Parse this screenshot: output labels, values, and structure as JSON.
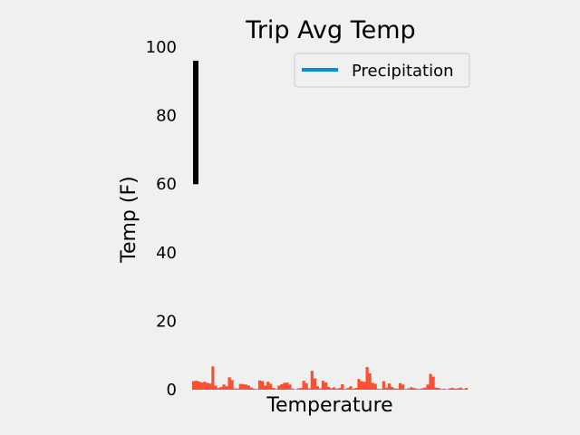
{
  "chart_data": {
    "type": "bar",
    "title": "Trip Avg Temp",
    "xlabel": "Temperature",
    "ylabel": "Temp (F)",
    "ylim": [
      0,
      100
    ],
    "yticks": [
      "0",
      "20",
      "40",
      "60",
      "80",
      "100"
    ],
    "grid": false,
    "legend": {
      "position": "top-right",
      "entries": [
        "Precipitation"
      ]
    },
    "error_bar": {
      "low": 60,
      "high": 96,
      "color": "#000000"
    },
    "series": [
      {
        "name": "Precipitation",
        "color": "#fc4f30",
        "legend_color": "#008fd5",
        "values": [
          2.5,
          2.6,
          2.4,
          2.1,
          2.3,
          2.0,
          1.8,
          6.8,
          1.2,
          0.5,
          0.8,
          1.5,
          1.0,
          3.6,
          2.8,
          0.4,
          0.3,
          1.7,
          1.6,
          1.5,
          1.2,
          0.6,
          0.3,
          0.2,
          2.7,
          2.5,
          1.2,
          2.3,
          1.7,
          0.5,
          0.2,
          1.2,
          1.6,
          2.0,
          2.1,
          1.5,
          0.3,
          0.1,
          0.4,
          0.5,
          2.6,
          1.9,
          0.4,
          5.5,
          3.3,
          1.0,
          0.4,
          2.6,
          2.1,
          0.8,
          0.4,
          0.7,
          0.3,
          0.5,
          1.6,
          0.2,
          0.5,
          1.0,
          0.3,
          0.5,
          3.1,
          2.5,
          2.3,
          6.6,
          4.8,
          2.0,
          1.7,
          0.3,
          0.2,
          2.5,
          0.6,
          1.8,
          0.8,
          0.4,
          0.3,
          1.9,
          1.5,
          0.2,
          0.4,
          0.7,
          0.5,
          0.3,
          0.2,
          0.4,
          0.6,
          1.5,
          4.6,
          3.8,
          0.6,
          0.5,
          0.2,
          0.3,
          0.1,
          0.4,
          0.5,
          0.3,
          0.4,
          0.6,
          0.2,
          0.5
        ]
      }
    ]
  }
}
